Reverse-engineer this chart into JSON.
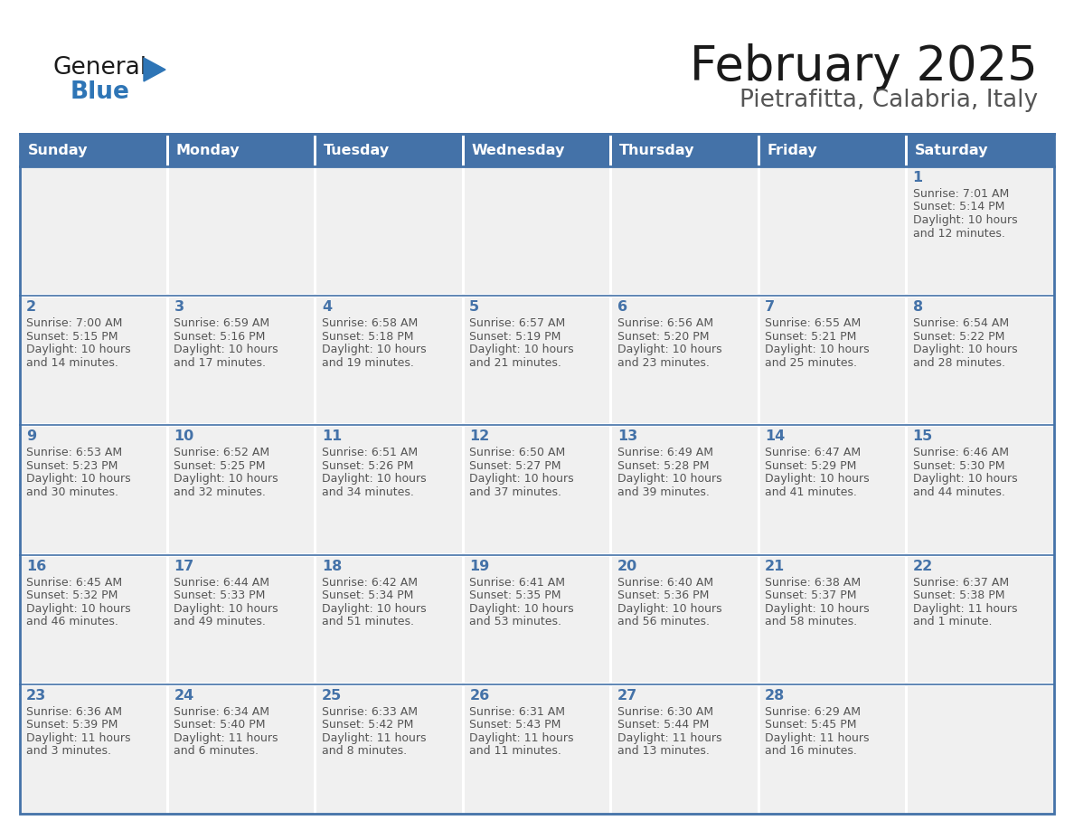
{
  "title": "February 2025",
  "subtitle": "Pietrafitta, Calabria, Italy",
  "days_of_week": [
    "Sunday",
    "Monday",
    "Tuesday",
    "Wednesday",
    "Thursday",
    "Friday",
    "Saturday"
  ],
  "header_bg": "#4472A8",
  "header_text": "#FFFFFF",
  "cell_bg": "#F0F0F0",
  "cell_bg_white": "#FFFFFF",
  "border_color": "#4472A8",
  "day_number_color": "#4472A8",
  "text_color": "#555555",
  "title_color": "#222222",
  "logo_general_color": "#222222",
  "logo_blue_color": "#2E75B6",
  "logo_triangle_color": "#2E75B6",
  "calendar_data": [
    [
      null,
      null,
      null,
      null,
      null,
      null,
      {
        "day": 1,
        "sunrise": "7:01 AM",
        "sunset": "5:14 PM",
        "daylight": "10 hours",
        "daylight2": "and 12 minutes."
      }
    ],
    [
      {
        "day": 2,
        "sunrise": "7:00 AM",
        "sunset": "5:15 PM",
        "daylight": "10 hours",
        "daylight2": "and 14 minutes."
      },
      {
        "day": 3,
        "sunrise": "6:59 AM",
        "sunset": "5:16 PM",
        "daylight": "10 hours",
        "daylight2": "and 17 minutes."
      },
      {
        "day": 4,
        "sunrise": "6:58 AM",
        "sunset": "5:18 PM",
        "daylight": "10 hours",
        "daylight2": "and 19 minutes."
      },
      {
        "day": 5,
        "sunrise": "6:57 AM",
        "sunset": "5:19 PM",
        "daylight": "10 hours",
        "daylight2": "and 21 minutes."
      },
      {
        "day": 6,
        "sunrise": "6:56 AM",
        "sunset": "5:20 PM",
        "daylight": "10 hours",
        "daylight2": "and 23 minutes."
      },
      {
        "day": 7,
        "sunrise": "6:55 AM",
        "sunset": "5:21 PM",
        "daylight": "10 hours",
        "daylight2": "and 25 minutes."
      },
      {
        "day": 8,
        "sunrise": "6:54 AM",
        "sunset": "5:22 PM",
        "daylight": "10 hours",
        "daylight2": "and 28 minutes."
      }
    ],
    [
      {
        "day": 9,
        "sunrise": "6:53 AM",
        "sunset": "5:23 PM",
        "daylight": "10 hours",
        "daylight2": "and 30 minutes."
      },
      {
        "day": 10,
        "sunrise": "6:52 AM",
        "sunset": "5:25 PM",
        "daylight": "10 hours",
        "daylight2": "and 32 minutes."
      },
      {
        "day": 11,
        "sunrise": "6:51 AM",
        "sunset": "5:26 PM",
        "daylight": "10 hours",
        "daylight2": "and 34 minutes."
      },
      {
        "day": 12,
        "sunrise": "6:50 AM",
        "sunset": "5:27 PM",
        "daylight": "10 hours",
        "daylight2": "and 37 minutes."
      },
      {
        "day": 13,
        "sunrise": "6:49 AM",
        "sunset": "5:28 PM",
        "daylight": "10 hours",
        "daylight2": "and 39 minutes."
      },
      {
        "day": 14,
        "sunrise": "6:47 AM",
        "sunset": "5:29 PM",
        "daylight": "10 hours",
        "daylight2": "and 41 minutes."
      },
      {
        "day": 15,
        "sunrise": "6:46 AM",
        "sunset": "5:30 PM",
        "daylight": "10 hours",
        "daylight2": "and 44 minutes."
      }
    ],
    [
      {
        "day": 16,
        "sunrise": "6:45 AM",
        "sunset": "5:32 PM",
        "daylight": "10 hours",
        "daylight2": "and 46 minutes."
      },
      {
        "day": 17,
        "sunrise": "6:44 AM",
        "sunset": "5:33 PM",
        "daylight": "10 hours",
        "daylight2": "and 49 minutes."
      },
      {
        "day": 18,
        "sunrise": "6:42 AM",
        "sunset": "5:34 PM",
        "daylight": "10 hours",
        "daylight2": "and 51 minutes."
      },
      {
        "day": 19,
        "sunrise": "6:41 AM",
        "sunset": "5:35 PM",
        "daylight": "10 hours",
        "daylight2": "and 53 minutes."
      },
      {
        "day": 20,
        "sunrise": "6:40 AM",
        "sunset": "5:36 PM",
        "daylight": "10 hours",
        "daylight2": "and 56 minutes."
      },
      {
        "day": 21,
        "sunrise": "6:38 AM",
        "sunset": "5:37 PM",
        "daylight": "10 hours",
        "daylight2": "and 58 minutes."
      },
      {
        "day": 22,
        "sunrise": "6:37 AM",
        "sunset": "5:38 PM",
        "daylight": "11 hours",
        "daylight2": "and 1 minute."
      }
    ],
    [
      {
        "day": 23,
        "sunrise": "6:36 AM",
        "sunset": "5:39 PM",
        "daylight": "11 hours",
        "daylight2": "and 3 minutes."
      },
      {
        "day": 24,
        "sunrise": "6:34 AM",
        "sunset": "5:40 PM",
        "daylight": "11 hours",
        "daylight2": "and 6 minutes."
      },
      {
        "day": 25,
        "sunrise": "6:33 AM",
        "sunset": "5:42 PM",
        "daylight": "11 hours",
        "daylight2": "and 8 minutes."
      },
      {
        "day": 26,
        "sunrise": "6:31 AM",
        "sunset": "5:43 PM",
        "daylight": "11 hours",
        "daylight2": "and 11 minutes."
      },
      {
        "day": 27,
        "sunrise": "6:30 AM",
        "sunset": "5:44 PM",
        "daylight": "11 hours",
        "daylight2": "and 13 minutes."
      },
      {
        "day": 28,
        "sunrise": "6:29 AM",
        "sunset": "5:45 PM",
        "daylight": "11 hours",
        "daylight2": "and 16 minutes."
      },
      null
    ]
  ]
}
